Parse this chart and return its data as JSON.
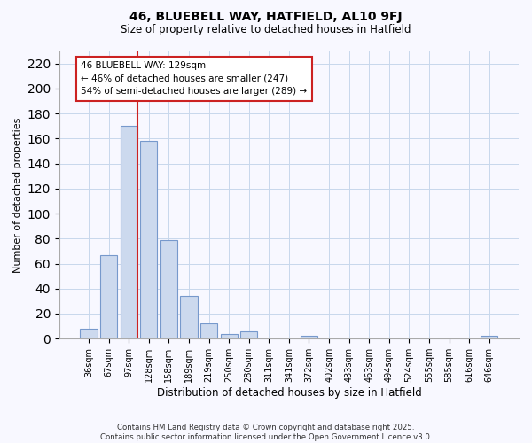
{
  "title": "46, BLUEBELL WAY, HATFIELD, AL10 9FJ",
  "subtitle": "Size of property relative to detached houses in Hatfield",
  "xlabel": "Distribution of detached houses by size in Hatfield",
  "ylabel": "Number of detached properties",
  "bar_color": "#ccd9ee",
  "bar_edge_color": "#7799cc",
  "vline_color": "#cc2222",
  "annotation_title": "46 BLUEBELL WAY: 129sqm",
  "annotation_line1": "← 46% of detached houses are smaller (247)",
  "annotation_line2": "54% of semi-detached houses are larger (289) →",
  "categories": [
    "36sqm",
    "67sqm",
    "97sqm",
    "128sqm",
    "158sqm",
    "189sqm",
    "219sqm",
    "250sqm",
    "280sqm",
    "311sqm",
    "341sqm",
    "372sqm",
    "402sqm",
    "433sqm",
    "463sqm",
    "494sqm",
    "524sqm",
    "555sqm",
    "585sqm",
    "616sqm",
    "646sqm"
  ],
  "bar_heights": [
    8,
    67,
    170,
    158,
    79,
    34,
    12,
    4,
    6,
    0,
    0,
    2,
    0,
    0,
    0,
    0,
    0,
    0,
    0,
    0,
    2
  ],
  "ylim": [
    0,
    230
  ],
  "yticks": [
    0,
    20,
    40,
    60,
    80,
    100,
    120,
    140,
    160,
    180,
    200,
    220
  ],
  "footer_line1": "Contains HM Land Registry data © Crown copyright and database right 2025.",
  "footer_line2": "Contains public sector information licensed under the Open Government Licence v3.0.",
  "background_color": "#f8f8ff",
  "grid_color": "#c8d8ec"
}
